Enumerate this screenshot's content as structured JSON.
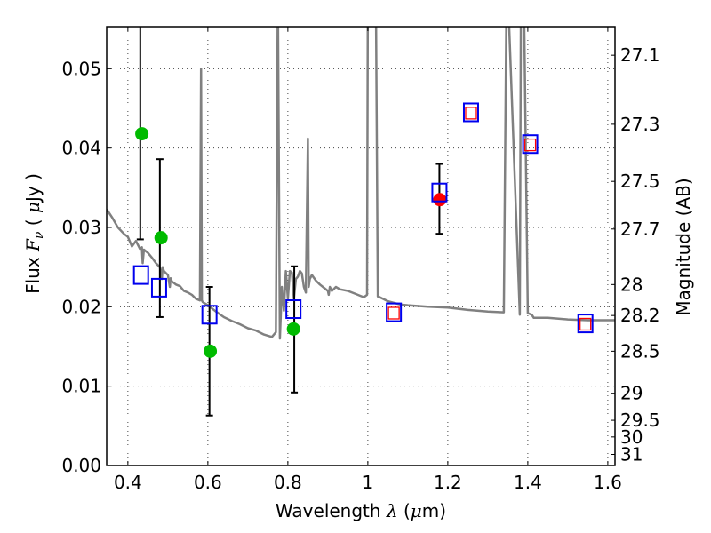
{
  "chart_data": {
    "type": "scatter",
    "title": "",
    "xlabel": "Wavelength  λ (μm)",
    "xlabel_parts": {
      "prefix": "Wavelength  ",
      "symbol": "λ",
      "suffix": " (",
      "unit_symbol": "μ",
      "unit": "m)"
    },
    "ylabel": "Flux  Fν  ( μJy )",
    "ylabel_parts": {
      "prefix": "Flux  ",
      "symbol": "F",
      "subscript": "ν",
      "middle": "  ( ",
      "unit_symbol": "μ",
      "unit": "Jy )"
    },
    "y2label": "Magnitude (AB)",
    "xlim": [
      0.347,
      1.618
    ],
    "ylim": [
      0.0,
      0.0553
    ],
    "grid": true,
    "grid_style": "dotted",
    "x_ticks": [
      0.4,
      0.6,
      0.8,
      1.0,
      1.2,
      1.4,
      1.6
    ],
    "x_tick_labels": [
      "0.4",
      "0.6",
      "0.8",
      "1",
      "1.2",
      "1.4",
      "1.6"
    ],
    "y_ticks": [
      0.0,
      0.01,
      0.02,
      0.03,
      0.04,
      0.05
    ],
    "y_tick_labels": [
      "0.00",
      "0.01",
      "0.02",
      "0.03",
      "0.04",
      "0.05"
    ],
    "y2_ticks": [
      {
        "label": "27.1",
        "flux": 0.0517
      },
      {
        "label": "27.3",
        "flux": 0.043
      },
      {
        "label": "27.5",
        "flux": 0.0358
      },
      {
        "label": "27.7",
        "flux": 0.0298
      },
      {
        "label": "28",
        "flux": 0.0228
      },
      {
        "label": "28.2",
        "flux": 0.0189
      },
      {
        "label": "28.5",
        "flux": 0.0144
      },
      {
        "label": "29",
        "flux": 0.0091
      },
      {
        "label": "29.5",
        "flux": 0.0057
      },
      {
        "label": "30",
        "flux": 0.0036
      },
      {
        "label": "31",
        "flux": 0.0014
      }
    ],
    "colors": {
      "model": "#808080",
      "green_points": "#00bb00",
      "red_points": "#ff0000",
      "blue_squares": "#0000ee",
      "red_squares": "#ff0000",
      "errorbars": "#000000",
      "grid": "#444444"
    },
    "series": [
      {
        "name": "model spectrum",
        "type": "line",
        "x": [
          0.347,
          0.36,
          0.375,
          0.39,
          0.4,
          0.41,
          0.42,
          0.43,
          0.435,
          0.437,
          0.44,
          0.45,
          0.46,
          0.47,
          0.48,
          0.485,
          0.487,
          0.49,
          0.5,
          0.505,
          0.507,
          0.51,
          0.52,
          0.53,
          0.54,
          0.55,
          0.56,
          0.57,
          0.58,
          0.583,
          0.585,
          0.587,
          0.59,
          0.6,
          0.62,
          0.64,
          0.66,
          0.68,
          0.7,
          0.72,
          0.74,
          0.76,
          0.77,
          0.775,
          0.78,
          0.785,
          0.79,
          0.795,
          0.8,
          0.805,
          0.81,
          0.815,
          0.82,
          0.825,
          0.83,
          0.835,
          0.84,
          0.845,
          0.85,
          0.852,
          0.855,
          0.86,
          0.87,
          0.88,
          0.89,
          0.9,
          0.902,
          0.905,
          0.91,
          0.92,
          0.93,
          0.95,
          0.97,
          0.99,
          0.998,
          1.0,
          1.005,
          1.01,
          1.02,
          1.025,
          1.03,
          1.05,
          1.08,
          1.1,
          1.15,
          1.2,
          1.25,
          1.3,
          1.34,
          1.347,
          1.35,
          1.38,
          1.383,
          1.386,
          1.39,
          1.4,
          1.41,
          1.415,
          1.42,
          1.45,
          1.5,
          1.55,
          1.6,
          1.618
        ],
        "y": [
          0.0323,
          0.0313,
          0.03,
          0.0292,
          0.0288,
          0.0276,
          0.0283,
          0.0273,
          0.0275,
          0.0255,
          0.0272,
          0.0268,
          0.0262,
          0.0255,
          0.025,
          0.0235,
          0.025,
          0.0245,
          0.024,
          0.0225,
          0.0236,
          0.0232,
          0.0228,
          0.0226,
          0.022,
          0.0218,
          0.0215,
          0.021,
          0.0208,
          0.05,
          0.0208,
          0.0206,
          0.0205,
          0.0202,
          0.0194,
          0.0187,
          0.0182,
          0.0178,
          0.0173,
          0.017,
          0.0165,
          0.0162,
          0.0168,
          0.06,
          0.016,
          0.0225,
          0.0195,
          0.0245,
          0.021,
          0.0245,
          0.0243,
          0.021,
          0.0235,
          0.0238,
          0.0245,
          0.0242,
          0.0225,
          0.0218,
          0.0412,
          0.0225,
          0.0235,
          0.024,
          0.0233,
          0.0228,
          0.0224,
          0.022,
          0.0215,
          0.0225,
          0.022,
          0.0225,
          0.0222,
          0.022,
          0.0216,
          0.0212,
          0.0215,
          0.06,
          0.06,
          0.06,
          0.06,
          0.0213,
          0.0212,
          0.0207,
          0.0203,
          0.0202,
          0.02,
          0.0199,
          0.0196,
          0.0194,
          0.0193,
          0.06,
          0.06,
          0.019,
          0.06,
          0.06,
          0.06,
          0.0192,
          0.019,
          0.0186,
          0.0186,
          0.0186,
          0.0184,
          0.0183,
          0.0183,
          0.0183
        ]
      },
      {
        "name": "observed (green)",
        "type": "scatter",
        "marker": "circle",
        "points": [
          {
            "x": 0.435,
            "y": 0.0418
          },
          {
            "x": 0.483,
            "y": 0.0287
          },
          {
            "x": 0.606,
            "y": 0.0144
          },
          {
            "x": 0.814,
            "y": 0.0172
          }
        ]
      },
      {
        "name": "observed (red)",
        "type": "scatter",
        "marker": "circle",
        "points": [
          {
            "x": 1.18,
            "y": 0.0335
          }
        ]
      },
      {
        "name": "error bars",
        "type": "errorbar",
        "bars": [
          {
            "x": 0.431,
            "low": 0.0285,
            "high": 0.0553
          },
          {
            "x": 0.48,
            "low": 0.0187,
            "high": 0.0386
          },
          {
            "x": 0.604,
            "low": 0.0063,
            "high": 0.0225
          },
          {
            "x": 0.816,
            "low": 0.0092,
            "high": 0.0251
          },
          {
            "x": 1.179,
            "low": 0.0292,
            "high": 0.038
          }
        ]
      },
      {
        "name": "model photometry (blue squares)",
        "type": "scatter",
        "marker": "square-open",
        "points": [
          {
            "x": 0.433,
            "y": 0.024
          },
          {
            "x": 0.478,
            "y": 0.0224
          },
          {
            "x": 0.604,
            "y": 0.019
          },
          {
            "x": 0.814,
            "y": 0.0197
          },
          {
            "x": 1.065,
            "y": 0.0193
          },
          {
            "x": 1.179,
            "y": 0.0344
          },
          {
            "x": 1.258,
            "y": 0.0445
          },
          {
            "x": 1.406,
            "y": 0.0405
          },
          {
            "x": 1.544,
            "y": 0.0179
          }
        ]
      },
      {
        "name": "model photometry (red squares)",
        "type": "scatter",
        "marker": "square-open-small",
        "points": [
          {
            "x": 1.065,
            "y": 0.0192
          },
          {
            "x": 1.258,
            "y": 0.0444
          },
          {
            "x": 1.406,
            "y": 0.0404
          },
          {
            "x": 1.544,
            "y": 0.0178
          }
        ]
      }
    ]
  }
}
